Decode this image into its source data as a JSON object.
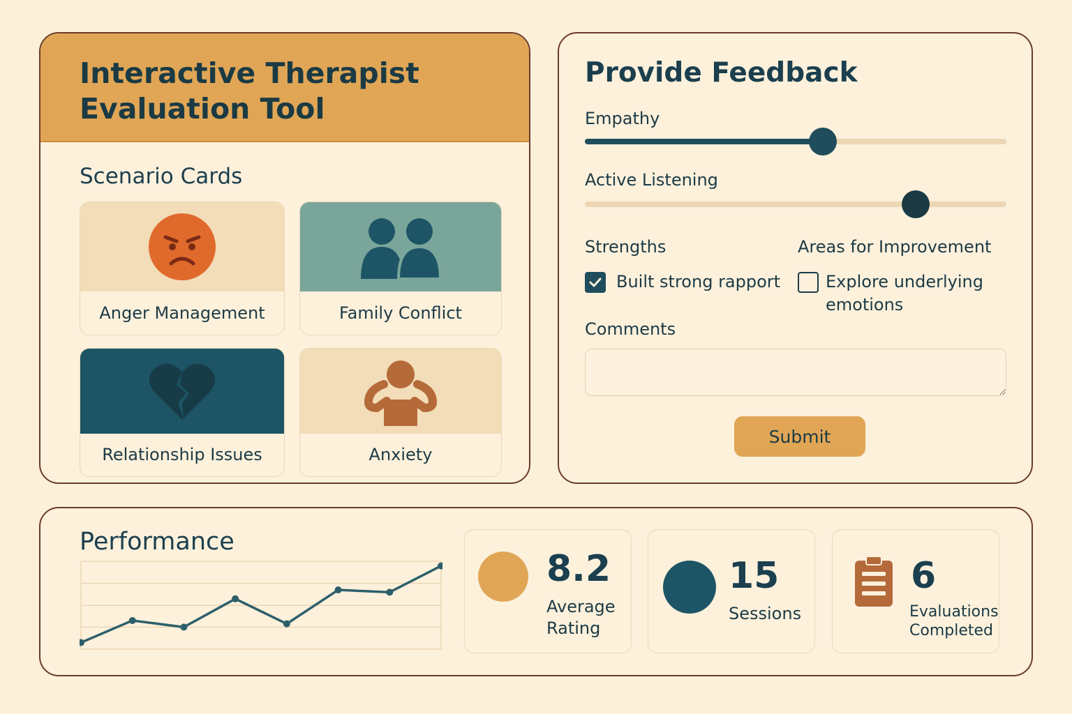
{
  "app": {
    "title": "Interactive Therapist Evaluation Tool"
  },
  "scenarios": {
    "title": "Scenario Cards",
    "cards": [
      {
        "label": "Anger Management",
        "icon": "angry-face-icon",
        "color": "#f2ddb8"
      },
      {
        "label": "Family Conflict",
        "icon": "family-icon",
        "color": "#7aa59a"
      },
      {
        "label": "Relationship Issues",
        "icon": "broken-heart-icon",
        "color": "#1d5566"
      },
      {
        "label": "Anxiety",
        "icon": "anxious-person-icon",
        "color": "#f2ddb8"
      }
    ]
  },
  "feedback": {
    "title": "Provide Feedback",
    "sliders": [
      {
        "label": "Empathy",
        "value": 0.565
      },
      {
        "label": "Active Listening",
        "value": 0.785
      }
    ],
    "strengths": {
      "title": "Strengths",
      "item": {
        "label": "Built strong rapport",
        "checked": true
      }
    },
    "improvement": {
      "title": "Areas for Improvement",
      "item_line1": "Explore underlying",
      "item_line2": "emotions",
      "checked": false
    },
    "comments_label": "Comments",
    "comments_value": "",
    "submit_label": "Submit"
  },
  "performance": {
    "title": "Performance",
    "stats": [
      {
        "value": "8.2",
        "label_line1": "Average",
        "label_line2": "Rating",
        "icon": "orange-circle-icon",
        "color": "#e0a656"
      },
      {
        "value": "15",
        "label_line1": "Sessions",
        "label_line2": "",
        "icon": "teal-circle-icon",
        "color": "#1d5566"
      },
      {
        "value": "6",
        "label_line1": "Evaluations",
        "label_line2": "Completed",
        "icon": "clipboard-icon",
        "color": "#b56a3a"
      }
    ]
  },
  "chart_data": {
    "type": "line",
    "x": [
      1,
      2,
      3,
      4,
      5,
      6,
      7,
      8
    ],
    "series": [
      {
        "values": [
          0.2,
          0.87,
          0.67,
          1.53,
          0.77,
          1.8,
          1.73,
          2.53
        ]
      }
    ],
    "ylim": [
      0,
      2.67
    ],
    "grid": true,
    "title": "",
    "xlabel": "",
    "ylabel": "",
    "colors": {
      "line": "#2d5f6b",
      "grid": "#ecd6b3"
    }
  }
}
